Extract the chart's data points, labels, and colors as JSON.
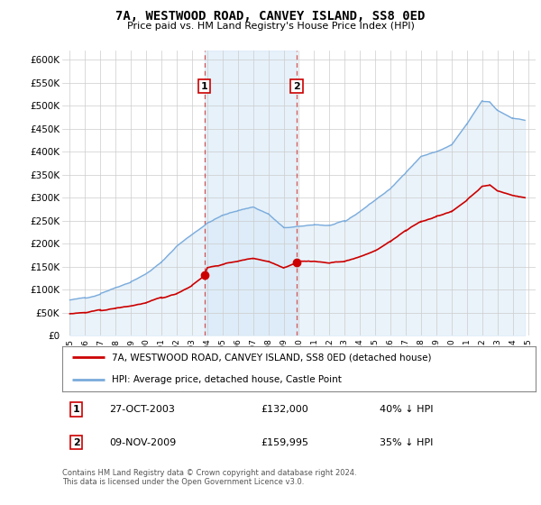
{
  "title": "7A, WESTWOOD ROAD, CANVEY ISLAND, SS8 0ED",
  "subtitle": "Price paid vs. HM Land Registry's House Price Index (HPI)",
  "ylabel_ticks": [
    "£0",
    "£50K",
    "£100K",
    "£150K",
    "£200K",
    "£250K",
    "£300K",
    "£350K",
    "£400K",
    "£450K",
    "£500K",
    "£550K",
    "£600K"
  ],
  "ylim": [
    0,
    620000
  ],
  "ytick_values": [
    0,
    50000,
    100000,
    150000,
    200000,
    250000,
    300000,
    350000,
    400000,
    450000,
    500000,
    550000,
    600000
  ],
  "background_color": "#ffffff",
  "chart_bg_color": "#ffffff",
  "grid_color": "#cccccc",
  "hpi_color": "#7aabdc",
  "hpi_fill_color": "#d6e8f7",
  "price_color": "#cc0000",
  "sale1_year": 2003.82,
  "sale1_price": 132000,
  "sale2_year": 2009.85,
  "sale2_price": 159995,
  "legend_label_price": "7A, WESTWOOD ROAD, CANVEY ISLAND, SS8 0ED (detached house)",
  "legend_label_hpi": "HPI: Average price, detached house, Castle Point",
  "note1_label": "1",
  "note1_date": "27-OCT-2003",
  "note1_price": "£132,000",
  "note1_hpi": "40% ↓ HPI",
  "note2_label": "2",
  "note2_date": "09-NOV-2009",
  "note2_price": "£159,995",
  "note2_hpi": "35% ↓ HPI",
  "footer": "Contains HM Land Registry data © Crown copyright and database right 2024.\nThis data is licensed under the Open Government Licence v3.0.",
  "xlim_start": 1994.5,
  "xlim_end": 2025.5,
  "xtick_years": [
    1995,
    1996,
    1997,
    1998,
    1999,
    2000,
    2001,
    2002,
    2003,
    2004,
    2005,
    2006,
    2007,
    2008,
    2009,
    2010,
    2011,
    2012,
    2013,
    2014,
    2015,
    2016,
    2017,
    2018,
    2019,
    2020,
    2021,
    2022,
    2023,
    2024,
    2025
  ]
}
